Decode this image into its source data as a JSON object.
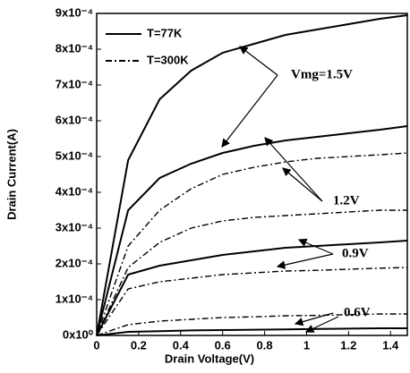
{
  "chart_data": {
    "type": "line",
    "x_label": "Drain Voltage(V)",
    "y_label": "Drain Current(A)",
    "x": [
      0,
      0.15,
      0.3,
      0.45,
      0.6,
      0.75,
      0.9,
      1.05,
      1.2,
      1.35,
      1.48
    ],
    "legend": [
      {
        "name": "T=77K",
        "dash": "solid"
      },
      {
        "name": "T=300K",
        "dash": "dashdot"
      }
    ],
    "series": [
      {
        "legend": 0,
        "color": "#000",
        "values": [
          0,
          0.00049,
          0.00066,
          0.00074,
          0.00079,
          0.000815,
          0.00084,
          0.000855,
          0.00087,
          0.000885,
          0.000895
        ]
      },
      {
        "legend": 0,
        "color": "#000",
        "values": [
          0,
          0.00035,
          0.00044,
          0.00048,
          0.00051,
          0.00053,
          0.000545,
          0.000555,
          0.000565,
          0.000575,
          0.000585
        ]
      },
      {
        "legend": 1,
        "color": "#000",
        "values": [
          0,
          0.00025,
          0.00035,
          0.00041,
          0.00045,
          0.00047,
          0.000485,
          0.000495,
          0.0005,
          0.000505,
          0.00051
        ]
      },
      {
        "legend": 1,
        "color": "#000",
        "values": [
          0,
          0.00019,
          0.00026,
          0.0003,
          0.00032,
          0.00033,
          0.000335,
          0.00034,
          0.000345,
          0.00035,
          0.00035
        ]
      },
      {
        "legend": 0,
        "color": "#000",
        "values": [
          0,
          0.00017,
          0.000195,
          0.00021,
          0.000225,
          0.000235,
          0.000245,
          0.00025,
          0.000255,
          0.00026,
          0.000265
        ]
      },
      {
        "legend": 1,
        "color": "#000",
        "values": [
          0,
          0.00013,
          0.00015,
          0.00016,
          0.00017,
          0.000175,
          0.00018,
          0.000182,
          0.000185,
          0.000188,
          0.00019
        ]
      },
      {
        "legend": 1,
        "color": "#000",
        "values": [
          0,
          3e-05,
          4e-05,
          4.5e-05,
          5e-05,
          5.2e-05,
          5.5e-05,
          5.6e-05,
          5.8e-05,
          6e-05,
          6e-05
        ]
      },
      {
        "legend": 0,
        "color": "#000",
        "values": [
          0,
          1e-05,
          1.2e-05,
          1.4e-05,
          1.5e-05,
          1.6e-05,
          1.7e-05,
          1.8e-05,
          1.9e-05,
          2e-05,
          2e-05
        ]
      }
    ],
    "annotations": [
      "Vmg=1.5V",
      "1.2V",
      "0.9V",
      "0.6V"
    ],
    "xlim": [
      0,
      1.48
    ],
    "ylim": [
      0,
      0.0009
    ],
    "xticks": [
      0,
      0.2,
      0.4,
      0.6,
      0.8,
      1,
      1.2,
      1.4
    ],
    "yticks": [
      {
        "value": 0,
        "label": "0x10⁰"
      },
      {
        "value": 0.0001,
        "label": "1x10⁻⁴"
      },
      {
        "value": 0.0002,
        "label": "2x10⁻⁴"
      },
      {
        "value": 0.0003,
        "label": "3x10⁻⁴"
      },
      {
        "value": 0.0004,
        "label": "4x10⁻⁴"
      },
      {
        "value": 0.0005,
        "label": "5x10⁻⁴"
      },
      {
        "value": 0.0006,
        "label": "6x10⁻⁴"
      },
      {
        "value": 0.0007,
        "label": "7x10⁻⁴"
      },
      {
        "value": 0.0008,
        "label": "8x10⁻⁴"
      },
      {
        "value": 0.0009,
        "label": "9x10⁻⁴"
      }
    ]
  }
}
